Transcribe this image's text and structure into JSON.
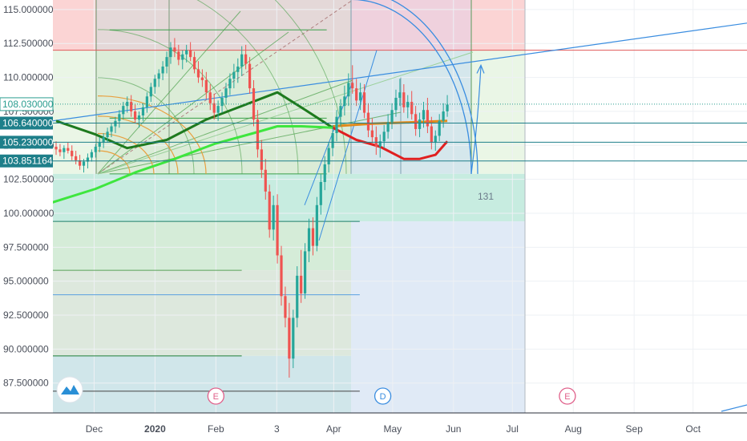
{
  "chart_data": {
    "type": "candlestick",
    "y_axis": {
      "range": [
        85.3,
        115.7
      ],
      "ticks": [
        115.0,
        112.5,
        110.0,
        107.5,
        105.0,
        102.5,
        100.0,
        97.5,
        95.0,
        92.5,
        90.0,
        87.5
      ],
      "tick_labels": [
        "115.000000",
        "112.500000",
        "110.000000",
        "107.500000",
        "105.000000",
        "102.500000",
        "100.000000",
        "97.500000",
        "95.000000",
        "92.500000",
        "90.000000",
        "87.500000"
      ],
      "position": "left"
    },
    "x_axis": {
      "labels": [
        {
          "text": "Dec",
          "date": "2019-12-01"
        },
        {
          "text": "2020",
          "date": "2020-01-01"
        },
        {
          "text": "Feb",
          "date": "2020-02-01"
        },
        {
          "text": "3",
          "date": "2020-03-03"
        },
        {
          "text": "Apr",
          "date": "2020-04-01"
        },
        {
          "text": "May",
          "date": "2020-05-01"
        },
        {
          "text": "Jun",
          "date": "2020-06-01"
        },
        {
          "text": "Jul",
          "date": "2020-07-01"
        },
        {
          "text": "Aug",
          "date": "2020-08-01"
        },
        {
          "text": "Sep",
          "date": "2020-09-01"
        },
        {
          "text": "Oct",
          "date": "2020-10-01"
        }
      ]
    },
    "price_badges": [
      {
        "value": "108.030000",
        "price": 108.03,
        "color": "#ffffff",
        "text_color": "#2a9d8f",
        "line": "dotted"
      },
      {
        "value": "106.640000",
        "price": 106.64,
        "color": "#1e7f8a",
        "line": "solid"
      },
      {
        "value": "105.230000",
        "price": 105.23,
        "color": "#1e7f8a",
        "line": "solid"
      },
      {
        "value": "103.851164",
        "price": 103.851164,
        "color": "#1e7f8a",
        "line": "solid"
      }
    ],
    "candles": [
      [
        104.9,
        105.3,
        104.3,
        104.7
      ],
      [
        104.7,
        105.1,
        104.2,
        104.5
      ],
      [
        104.5,
        105.0,
        104.0,
        104.8
      ],
      [
        104.8,
        105.2,
        104.4,
        104.6
      ],
      [
        104.6,
        105.0,
        103.9,
        104.2
      ],
      [
        104.2,
        104.6,
        103.6,
        103.9
      ],
      [
        103.9,
        104.3,
        103.2,
        103.5
      ],
      [
        103.5,
        104.0,
        103.0,
        103.8
      ],
      [
        103.8,
        104.4,
        103.3,
        104.1
      ],
      [
        104.1,
        104.7,
        103.8,
        104.5
      ],
      [
        104.5,
        105.1,
        104.1,
        104.9
      ],
      [
        104.9,
        105.6,
        104.5,
        105.2
      ],
      [
        105.2,
        105.9,
        104.8,
        105.6
      ],
      [
        105.6,
        106.3,
        105.2,
        106.0
      ],
      [
        106.0,
        106.6,
        105.6,
        106.4
      ],
      [
        106.4,
        107.1,
        105.9,
        106.8
      ],
      [
        106.8,
        107.6,
        106.3,
        107.3
      ],
      [
        107.3,
        108.2,
        106.9,
        107.9
      ],
      [
        107.9,
        108.6,
        107.4,
        108.2
      ],
      [
        108.2,
        108.7,
        107.1,
        107.5
      ],
      [
        107.5,
        108.0,
        106.6,
        106.9
      ],
      [
        106.9,
        107.5,
        106.3,
        107.2
      ],
      [
        107.2,
        108.1,
        106.8,
        107.8
      ],
      [
        107.8,
        108.9,
        107.4,
        108.6
      ],
      [
        108.6,
        109.6,
        108.2,
        109.3
      ],
      [
        109.3,
        110.2,
        108.8,
        109.9
      ],
      [
        109.9,
        110.6,
        109.3,
        110.3
      ],
      [
        110.3,
        111.2,
        109.8,
        110.8
      ],
      [
        110.8,
        111.9,
        110.3,
        111.5
      ],
      [
        111.5,
        112.6,
        111.0,
        112.2
      ],
      [
        112.2,
        112.9,
        111.5,
        111.9
      ],
      [
        111.9,
        112.4,
        110.9,
        111.3
      ],
      [
        111.3,
        112.0,
        110.6,
        111.7
      ],
      [
        111.7,
        112.4,
        111.1,
        112.0
      ],
      [
        112.0,
        112.6,
        111.2,
        111.5
      ],
      [
        111.5,
        111.9,
        110.3,
        110.6
      ],
      [
        110.6,
        111.2,
        109.6,
        110.0
      ],
      [
        110.0,
        110.6,
        109.3,
        109.8
      ],
      [
        109.8,
        110.4,
        108.4,
        108.9
      ],
      [
        108.9,
        109.5,
        107.6,
        108.1
      ],
      [
        108.1,
        108.8,
        106.9,
        107.4
      ],
      [
        107.4,
        108.3,
        106.8,
        107.9
      ],
      [
        107.9,
        108.9,
        107.4,
        108.5
      ],
      [
        108.5,
        109.6,
        108.0,
        109.2
      ],
      [
        109.2,
        110.3,
        108.7,
        109.9
      ],
      [
        109.9,
        111.0,
        109.2,
        110.4
      ],
      [
        110.4,
        111.4,
        109.6,
        110.8
      ],
      [
        110.8,
        112.3,
        110.1,
        111.7
      ],
      [
        111.7,
        112.4,
        110.6,
        111.0
      ],
      [
        111.0,
        111.5,
        108.8,
        109.2
      ],
      [
        109.2,
        109.8,
        106.4,
        106.9
      ],
      [
        106.9,
        107.6,
        104.1,
        104.7
      ],
      [
        104.7,
        105.4,
        102.6,
        103.2
      ],
      [
        103.2,
        104.0,
        101.0,
        101.6
      ],
      [
        101.6,
        102.1,
        98.2,
        98.8
      ],
      [
        98.8,
        101.3,
        98.0,
        100.6
      ],
      [
        100.6,
        101.4,
        96.3,
        96.9
      ],
      [
        96.9,
        97.6,
        93.2,
        93.9
      ],
      [
        93.9,
        94.6,
        91.6,
        92.3
      ],
      [
        92.3,
        93.4,
        87.9,
        89.3
      ],
      [
        89.3,
        92.9,
        88.6,
        92.3
      ],
      [
        92.3,
        96.1,
        91.6,
        95.4
      ],
      [
        95.4,
        97.3,
        93.4,
        94.1
      ],
      [
        94.1,
        97.8,
        93.7,
        97.2
      ],
      [
        97.2,
        99.6,
        96.4,
        98.9
      ],
      [
        98.9,
        99.7,
        96.9,
        97.6
      ],
      [
        97.6,
        101.2,
        97.2,
        100.6
      ],
      [
        100.6,
        102.9,
        99.9,
        102.3
      ],
      [
        102.3,
        104.2,
        101.7,
        103.6
      ],
      [
        103.6,
        105.2,
        103.0,
        104.8
      ],
      [
        104.8,
        106.5,
        104.2,
        105.9
      ],
      [
        105.9,
        107.6,
        105.3,
        107.1
      ],
      [
        107.1,
        108.4,
        106.4,
        107.9
      ],
      [
        107.9,
        109.4,
        107.2,
        108.6
      ],
      [
        108.6,
        110.3,
        107.9,
        109.6
      ],
      [
        109.6,
        110.9,
        108.8,
        109.2
      ],
      [
        109.2,
        109.9,
        107.9,
        108.3
      ],
      [
        108.3,
        109.6,
        107.6,
        108.9
      ],
      [
        108.9,
        109.5,
        107.0,
        107.4
      ],
      [
        107.4,
        108.1,
        105.6,
        106.1
      ],
      [
        106.1,
        107.0,
        105.1,
        105.6
      ],
      [
        105.6,
        106.4,
        104.3,
        104.9
      ],
      [
        104.9,
        105.8,
        104.1,
        105.3
      ],
      [
        105.3,
        106.5,
        104.8,
        106.0
      ],
      [
        106.0,
        107.3,
        105.5,
        106.7
      ],
      [
        106.7,
        108.1,
        106.2,
        107.6
      ],
      [
        107.6,
        109.1,
        107.1,
        108.5
      ],
      [
        108.5,
        109.9,
        107.9,
        108.9
      ],
      [
        108.9,
        109.5,
        107.4,
        107.8
      ],
      [
        107.8,
        108.7,
        107.0,
        108.2
      ],
      [
        108.2,
        109.0,
        106.9,
        107.3
      ],
      [
        107.3,
        107.9,
        105.7,
        106.2
      ],
      [
        106.2,
        107.4,
        105.6,
        106.9
      ],
      [
        106.9,
        108.2,
        106.3,
        107.6
      ],
      [
        107.6,
        108.5,
        105.9,
        106.4
      ],
      [
        106.4,
        107.1,
        104.7,
        105.2
      ],
      [
        105.2,
        106.1,
        104.6,
        105.7
      ],
      [
        105.7,
        107.3,
        105.3,
        106.8
      ],
      [
        106.8,
        108.1,
        106.3,
        107.5
      ],
      [
        107.5,
        108.7,
        107.1,
        108.0
      ]
    ],
    "moving_averages": [
      {
        "color": "#1e7a1e",
        "points": [
          [
            0,
            106.8
          ],
          [
            10,
            105.8
          ],
          [
            18,
            104.8
          ],
          [
            28,
            105.4
          ],
          [
            38,
            106.9
          ],
          [
            48,
            108.0
          ],
          [
            56,
            108.9
          ],
          [
            62,
            107.8
          ],
          [
            70,
            106.3
          ]
        ]
      },
      {
        "color": "#3ee63e",
        "points": [
          [
            -2,
            100.7
          ],
          [
            10,
            101.8
          ],
          [
            20,
            103.0
          ],
          [
            30,
            104.0
          ],
          [
            40,
            105.1
          ],
          [
            50,
            105.9
          ],
          [
            56,
            106.4
          ],
          [
            62,
            106.4
          ],
          [
            70,
            106.3
          ]
        ]
      },
      {
        "color": "#e08a1a",
        "points": [
          [
            70,
            106.4
          ],
          [
            80,
            106.6
          ],
          [
            90,
            106.7
          ],
          [
            99,
            106.8
          ]
        ]
      },
      {
        "color": "#e02020",
        "points": [
          [
            70,
            106.3
          ],
          [
            76,
            105.4
          ],
          [
            82,
            104.9
          ],
          [
            88,
            104.0
          ],
          [
            92,
            104.0
          ],
          [
            96,
            104.3
          ],
          [
            99,
            105.3
          ]
        ]
      }
    ],
    "horizontal_lines": [
      {
        "price": 112.0,
        "color": "#e05a5a",
        "from": 0,
        "to": 1
      },
      {
        "price": 99.4,
        "color": "#1e7f6a",
        "from": 0,
        "to": 0.65
      },
      {
        "price": 95.8,
        "color": "#5aa05a",
        "from": 0,
        "to": 0.4
      },
      {
        "price": 94.0,
        "color": "#5aa0e0",
        "from": 0,
        "to": 0.65
      },
      {
        "price": 89.5,
        "color": "#1e7f3a",
        "from": 0,
        "to": 0.4
      },
      {
        "price": 86.9,
        "color": "#444444",
        "from": 0,
        "to": 0.65
      },
      {
        "price": 113.5,
        "color": "#3aa04a",
        "from": 0.12,
        "to": 0.58
      },
      {
        "price": 102.9,
        "color": "#3aa04a",
        "from": 0.12,
        "to": 0.58
      },
      {
        "price": 107.0,
        "color": "#3aa04a",
        "from": 0.12,
        "to": 0.58
      }
    ],
    "annotations": [
      {
        "text": "131",
        "color": "#6b7a8a"
      }
    ],
    "event_markers": [
      {
        "text": "E",
        "date": "2020-02-01",
        "color": "#e0608a"
      },
      {
        "text": "D",
        "date": "2020-04-26",
        "color": "#3a8de0"
      },
      {
        "text": "E",
        "date": "2020-07-29",
        "color": "#e0608a"
      }
    ],
    "colors": {
      "up": "#26a69a",
      "down": "#ef5350",
      "grid": "#eef1f4"
    }
  }
}
